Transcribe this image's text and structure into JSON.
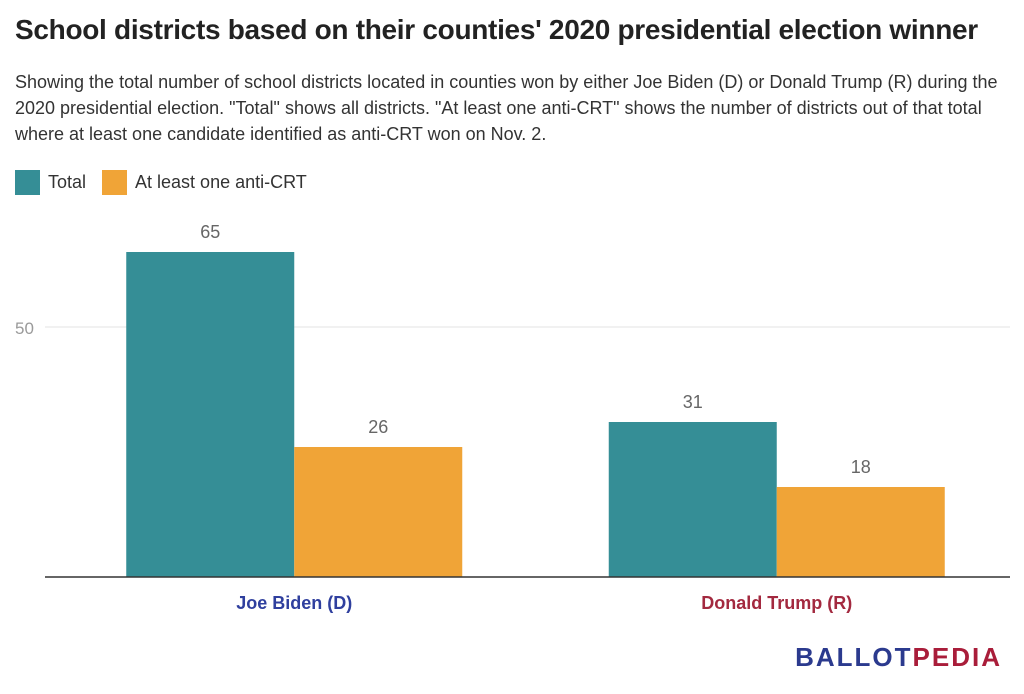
{
  "chart_data": {
    "type": "bar",
    "title": "School districts based on their counties' 2020 presidential election winner",
    "subtitle": "Showing the total number of school districts located in counties won by either Joe Biden (D) or Donald Trump (R) during the 2020 presidential election. \"Total\" shows all districts. \"At least one anti-CRT\" shows the number of districts out of that total where at least one candidate identified as anti-CRT won on Nov. 2.",
    "categories": [
      "Joe Biden (D)",
      "Donald Trump (R)"
    ],
    "category_colors": [
      "#2f3f9e",
      "#a3293f"
    ],
    "series": [
      {
        "name": "Total",
        "color": "#358e96",
        "values": [
          65,
          31
        ]
      },
      {
        "name": "At least one anti-CRT",
        "color": "#f0a437",
        "values": [
          26,
          18
        ]
      }
    ],
    "yticks": [
      50
    ],
    "ylim": [
      0,
      73
    ],
    "legend_position": "top-left",
    "grid": true
  },
  "brand": {
    "part1": "BALLOT",
    "part2": "PEDIA"
  }
}
